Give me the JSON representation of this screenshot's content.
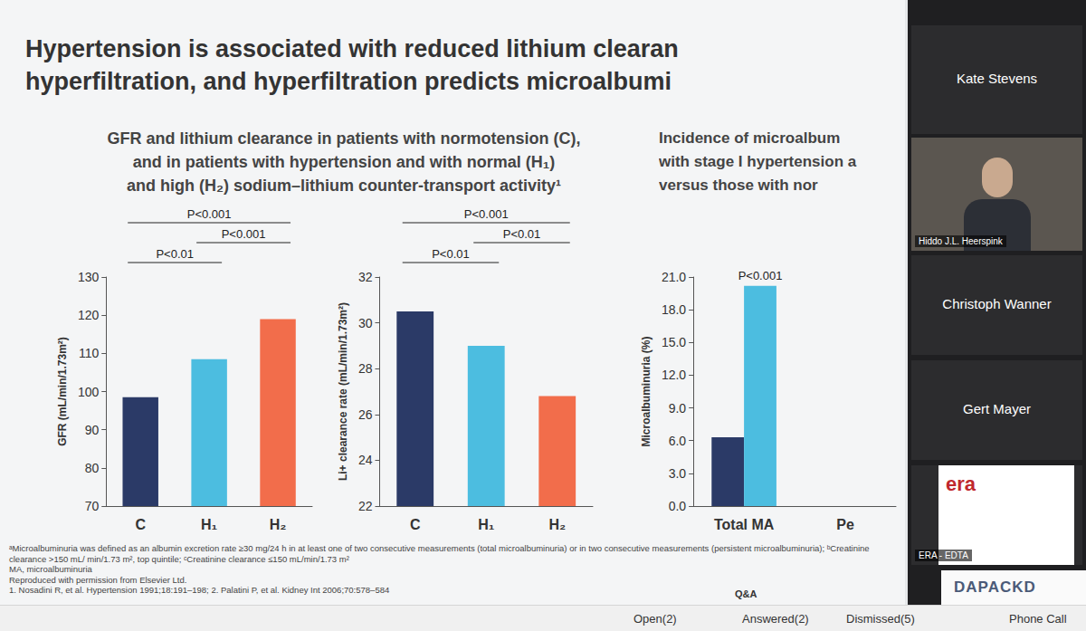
{
  "slide": {
    "title_lines": [
      "Hypertension is associated with reduced lithium clearan",
      "hyperfiltration, and hyperfiltration predicts microalbumi"
    ],
    "left_heading": [
      "GFR and lithium clearance in patients with normotension (C),",
      "and in patients with hypertension and with normal (H₁)",
      "and high (H₂) sodium–lithium counter-transport activity¹"
    ],
    "right_heading": [
      "Incidence of microalbum",
      "with stage I hypertension a",
      "versus those with nor"
    ],
    "footnotes": [
      "ᵃMicroalbuminuria was defined as an albumin excretion rate ≥30 mg/24 h in at least one of two consecutive measurements (total microalbuminuria) or in two consecutive measurements (persistent microalbuminuria); ᵇCreatinine clearance >150 mL/ min/1.73 m², top quintile; ᶜCreatinine clearance ≤150 mL/min/1.73 m²",
      "MA, microalbuminuria",
      "Reproduced with permission from Elsevier Ltd.",
      "1. Nosadini R, et al. Hypertension 1991;18:191–198; 2. Palatini P, et al. Kidney Int 2006;70:578–584"
    ],
    "logo": "DAPACKD"
  },
  "chart_data": [
    {
      "type": "bar",
      "y_label": "GFR (mL/min/1.73m²)",
      "categories": [
        "C",
        "H₁",
        "H₂"
      ],
      "values": [
        98.5,
        108.5,
        119
      ],
      "colors": [
        "#2b3a67",
        "#4cbde0",
        "#f26d4b"
      ],
      "ylim": [
        70,
        130
      ],
      "yticks": [
        70,
        80,
        90,
        100,
        110,
        120,
        130
      ],
      "grid": false,
      "annotations": [
        {
          "from": "C",
          "to": "H₂",
          "text": "P<0.001"
        },
        {
          "from": "H₁",
          "to": "H₂",
          "text": "P<0.001"
        },
        {
          "from": "C",
          "to": "H₁",
          "text": "P<0.01"
        }
      ]
    },
    {
      "type": "bar",
      "y_label": "Li+ clearance rate (mL/min/1.73m²)",
      "categories": [
        "C",
        "H₁",
        "H₂"
      ],
      "values": [
        30.5,
        29.0,
        26.8
      ],
      "colors": [
        "#2b3a67",
        "#4cbde0",
        "#f26d4b"
      ],
      "ylim": [
        22,
        32
      ],
      "yticks": [
        22,
        24,
        26,
        28,
        30,
        32
      ],
      "grid": false,
      "annotations": [
        {
          "from": "C",
          "to": "H₂",
          "text": "P<0.001"
        },
        {
          "from": "H₁",
          "to": "H₂",
          "text": "P<0.01"
        },
        {
          "from": "C",
          "to": "H₁",
          "text": "P<0.01"
        }
      ]
    },
    {
      "type": "bar",
      "y_label": "Microalbuminuria (%)",
      "categories": [
        "Total MA",
        "Pe"
      ],
      "series": [
        {
          "color": "#2b3a67",
          "values": [
            6.3,
            null
          ]
        },
        {
          "color": "#4cbde0",
          "values": [
            20.2,
            null
          ]
        }
      ],
      "ylim": [
        0,
        21
      ],
      "yticks": [
        {
          "value": 0,
          "label": "0.0"
        },
        {
          "value": 3,
          "label": "3.0"
        },
        {
          "value": 6,
          "label": "6.0"
        },
        {
          "value": 9,
          "label": "9.0"
        },
        {
          "value": 12,
          "label": "12.0"
        },
        {
          "value": 15,
          "label": "15.0"
        },
        {
          "value": 18,
          "label": "18.0"
        },
        {
          "value": 21,
          "label": "21.0"
        }
      ],
      "grid": false,
      "annotations": [
        {
          "category": "Total MA",
          "series": 1,
          "text": "P<0.001"
        }
      ]
    }
  ],
  "meeting": {
    "participants": [
      "Kate Stevens",
      "Hiddo J.L. Heerspink",
      "Christoph Wanner",
      "Gert Mayer",
      "ERA - EDTA"
    ],
    "logo": "era",
    "qa": {
      "title": "Q&A",
      "tabs": [
        "Open(2)",
        "Answered(2)",
        "Dismissed(5)"
      ]
    },
    "phone": "Phone Call"
  }
}
